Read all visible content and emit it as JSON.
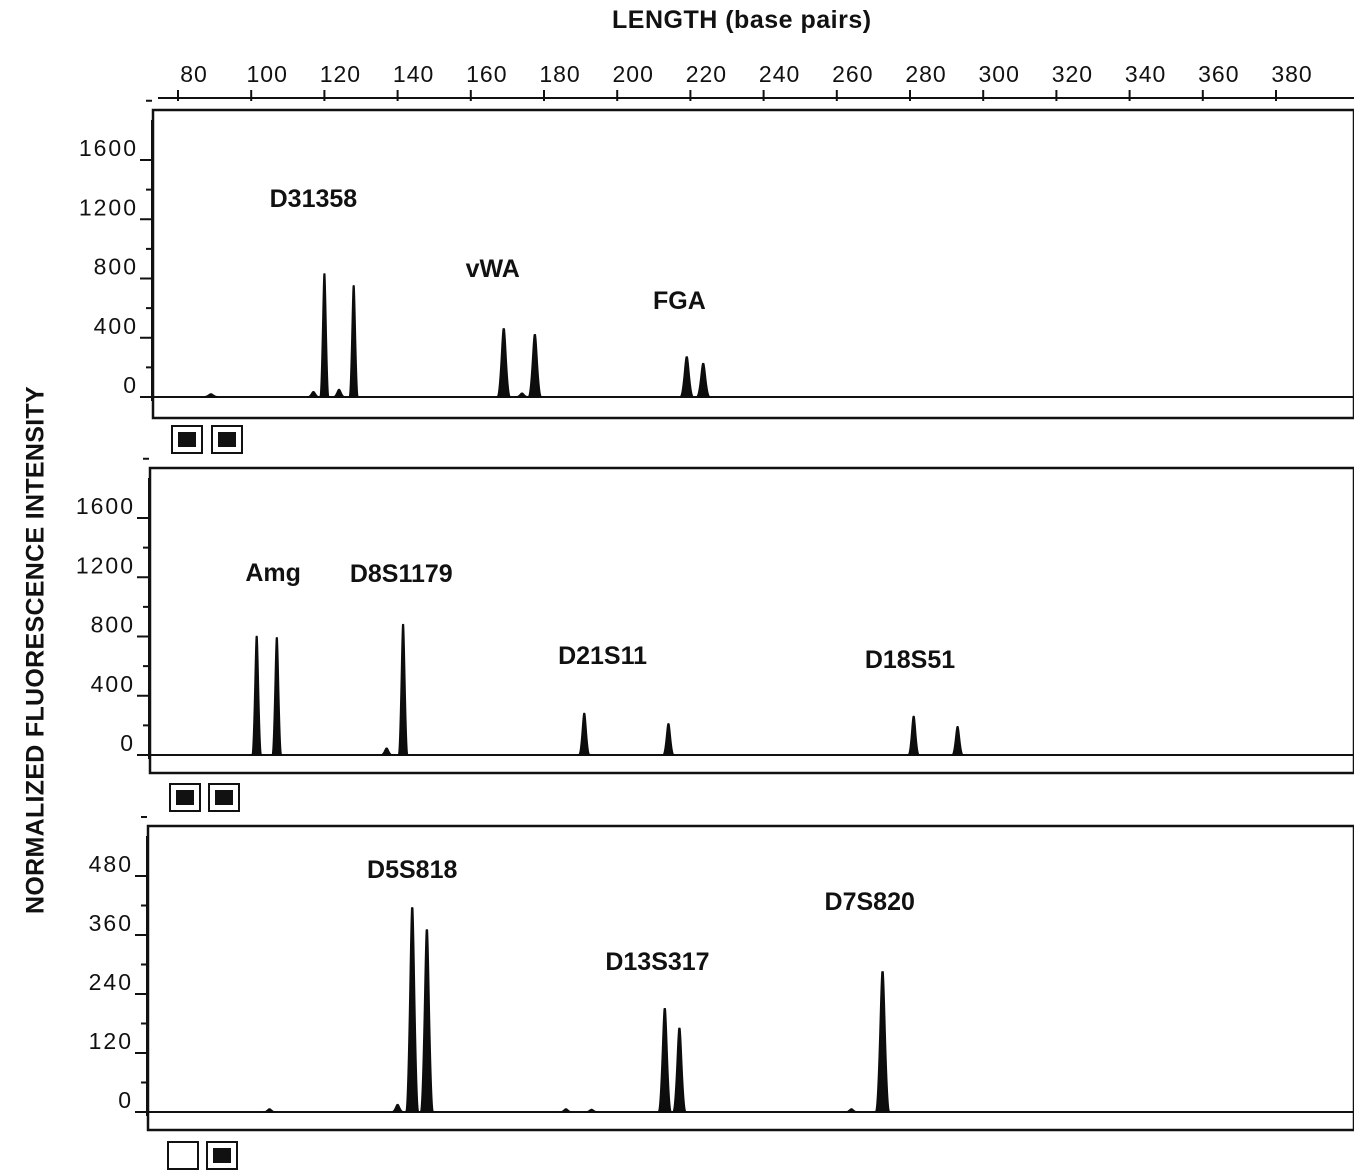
{
  "chart_data": {
    "type": "line",
    "title": "",
    "xlabel": "LENGTH (base pairs)",
    "ylabel": "NORMALIZED FLUORESCENCE INTENSITY",
    "x_ticks": [
      80,
      100,
      120,
      140,
      160,
      180,
      200,
      220,
      240,
      260,
      280,
      300,
      320,
      340,
      360,
      380
    ],
    "xlim": [
      76,
      396
    ],
    "panels": [
      {
        "y_ticks": [
          0,
          400,
          800,
          1200,
          1600
        ],
        "ylim": [
          0,
          1900
        ],
        "checkboxes": [
          true,
          true
        ],
        "loci": [
          {
            "name": "D31358",
            "x": 117
          },
          {
            "name": "vWA",
            "x": 166
          },
          {
            "name": "FGA",
            "x": 217
          }
        ],
        "peaks": [
          {
            "x": 89,
            "height": 20,
            "width": 1.2
          },
          {
            "x": 117,
            "height": 35,
            "width": 1.0
          },
          {
            "x": 120,
            "height": 830,
            "width": 0.85
          },
          {
            "x": 124,
            "height": 50,
            "width": 1.0
          },
          {
            "x": 128,
            "height": 750,
            "width": 0.85
          },
          {
            "x": 169,
            "height": 460,
            "width": 1.2
          },
          {
            "x": 177.5,
            "height": 420,
            "width": 1.2
          },
          {
            "x": 174,
            "height": 25,
            "width": 1.0
          },
          {
            "x": 219,
            "height": 270,
            "width": 1.2
          },
          {
            "x": 223.5,
            "height": 225,
            "width": 1.2
          }
        ]
      },
      {
        "y_ticks": [
          0,
          400,
          800,
          1200,
          1600
        ],
        "ylim": [
          0,
          1900
        ],
        "checkboxes": [
          true,
          true
        ],
        "loci": [
          {
            "name": "Amg",
            "x": 106
          },
          {
            "name": "D8S1179",
            "x": 141
          },
          {
            "name": "D21S11",
            "x": 196
          },
          {
            "name": "D18S51",
            "x": 280
          }
        ],
        "peaks": [
          {
            "x": 101.5,
            "height": 800,
            "width": 0.9
          },
          {
            "x": 107,
            "height": 790,
            "width": 0.9
          },
          {
            "x": 137,
            "height": 45,
            "width": 1.0
          },
          {
            "x": 141.5,
            "height": 880,
            "width": 0.9
          },
          {
            "x": 191,
            "height": 280,
            "width": 1.0
          },
          {
            "x": 214,
            "height": 210,
            "width": 1.0
          },
          {
            "x": 281,
            "height": 260,
            "width": 1.0
          },
          {
            "x": 293,
            "height": 190,
            "width": 1.0
          }
        ]
      },
      {
        "y_ticks": [
          0,
          120,
          240,
          360,
          480
        ],
        "ylim": [
          0,
          570
        ],
        "checkboxes": [
          false,
          true
        ],
        "loci": [
          {
            "name": "D5S818",
            "x": 144
          },
          {
            "name": "D13S317",
            "x": 211
          },
          {
            "name": "D7S820",
            "x": 269
          }
        ],
        "peaks": [
          {
            "x": 105,
            "height": 6,
            "width": 1.0
          },
          {
            "x": 140,
            "height": 15,
            "width": 1.0
          },
          {
            "x": 144,
            "height": 415,
            "width": 1.2
          },
          {
            "x": 148,
            "height": 370,
            "width": 1.2
          },
          {
            "x": 186,
            "height": 6,
            "width": 1.0
          },
          {
            "x": 193,
            "height": 5,
            "width": 1.0
          },
          {
            "x": 213,
            "height": 210,
            "width": 1.2
          },
          {
            "x": 217,
            "height": 170,
            "width": 1.2
          },
          {
            "x": 264,
            "height": 6,
            "width": 1.0
          },
          {
            "x": 272.5,
            "height": 285,
            "width": 1.3
          }
        ]
      }
    ]
  }
}
